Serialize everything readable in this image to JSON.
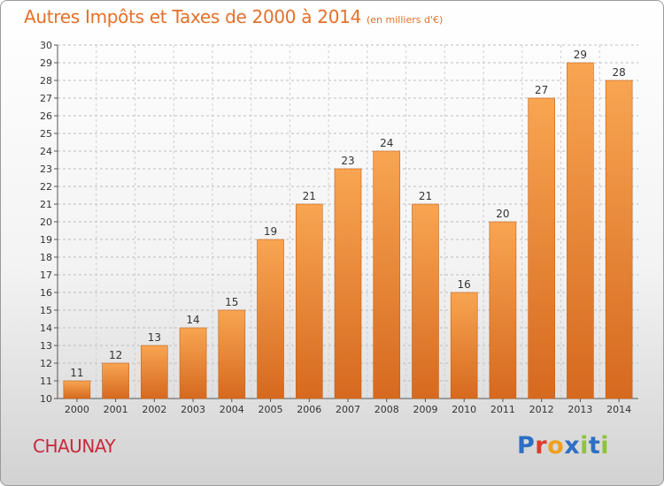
{
  "header": {
    "title": "Autres Impôts et Taxes de 2000 à 2014",
    "unit": "(en milliers d'€)"
  },
  "footer": {
    "town": "CHAUNAY",
    "brand": "Proxiti"
  },
  "colors": {
    "title": "#e4702a",
    "town": "#c8283c",
    "bar_light": "#f8a552",
    "bar_dark": "#d6691f",
    "bar_edge": "#c2621c",
    "brand_letters": [
      "#2d6fc4",
      "#e03a2a",
      "#f0a020",
      "#2d6fc4",
      "#8cc43a",
      "#2d6fc4",
      "#8cc43a"
    ]
  },
  "chart_data": {
    "type": "bar",
    "title": "Autres Impôts et Taxes de 2000 à 2014",
    "xlabel": "",
    "ylabel": "",
    "ylim": [
      10,
      30
    ],
    "grid": true,
    "categories": [
      "2000",
      "2001",
      "2002",
      "2003",
      "2004",
      "2005",
      "2006",
      "2007",
      "2008",
      "2009",
      "2010",
      "2011",
      "2012",
      "2013",
      "2014"
    ],
    "values": [
      11,
      12,
      13,
      14,
      15,
      19,
      21,
      23,
      24,
      21,
      16,
      20,
      27,
      29,
      28
    ],
    "yticks": [
      10,
      11,
      12,
      13,
      14,
      15,
      16,
      17,
      18,
      19,
      20,
      21,
      22,
      23,
      24,
      25,
      26,
      27,
      28,
      29,
      30
    ]
  }
}
